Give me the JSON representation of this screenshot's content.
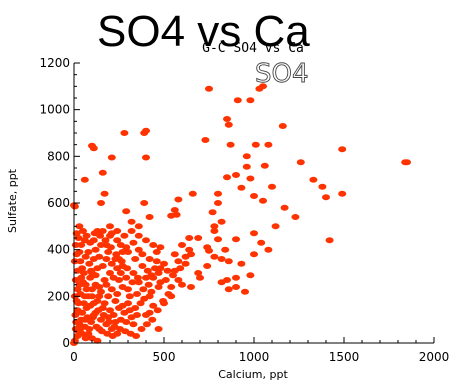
{
  "chart_data": {
    "type": "scatter",
    "title": "SO4 vs Ca",
    "subtitle": "G-C SO4 vs Ca",
    "annotation": "SO4",
    "xlabel": "Calcium, ppt",
    "ylabel": "Sulfate, ppt",
    "xlim": [
      0,
      2000
    ],
    "ylim": [
      0,
      1200
    ],
    "x_ticks": [
      0,
      500,
      1000,
      1500,
      2000
    ],
    "y_ticks": [
      0,
      200,
      400,
      600,
      800,
      1000,
      1200
    ],
    "grid": false,
    "color": "#ff3300",
    "points": [
      [
        0,
        590
      ],
      [
        5,
        585
      ],
      [
        100,
        845
      ],
      [
        110,
        835
      ],
      [
        280,
        900
      ],
      [
        210,
        795
      ],
      [
        400,
        795
      ],
      [
        390,
        900
      ],
      [
        400,
        910
      ],
      [
        750,
        1090
      ],
      [
        910,
        1040
      ],
      [
        980,
        1040
      ],
      [
        1030,
        1090
      ],
      [
        1050,
        1100
      ],
      [
        850,
        960
      ],
      [
        860,
        935
      ],
      [
        1160,
        930
      ],
      [
        730,
        870
      ],
      [
        870,
        850
      ],
      [
        960,
        800
      ],
      [
        960,
        755
      ],
      [
        1010,
        850
      ],
      [
        1080,
        850
      ],
      [
        1260,
        775
      ],
      [
        1490,
        830
      ],
      [
        1840,
        775
      ],
      [
        1850,
        775
      ],
      [
        1060,
        760
      ],
      [
        980,
        705
      ],
      [
        900,
        720
      ],
      [
        850,
        710
      ],
      [
        930,
        665
      ],
      [
        800,
        640
      ],
      [
        800,
        600
      ],
      [
        660,
        640
      ],
      [
        580,
        615
      ],
      [
        1000,
        630
      ],
      [
        1050,
        610
      ],
      [
        1100,
        670
      ],
      [
        1170,
        580
      ],
      [
        1330,
        700
      ],
      [
        1380,
        670
      ],
      [
        1400,
        625
      ],
      [
        1490,
        640
      ],
      [
        1230,
        540
      ],
      [
        1420,
        440
      ],
      [
        1120,
        500
      ],
      [
        1000,
        470
      ],
      [
        770,
        560
      ],
      [
        780,
        500
      ],
      [
        780,
        480
      ],
      [
        820,
        520
      ],
      [
        800,
        445
      ],
      [
        900,
        445
      ],
      [
        840,
        400
      ],
      [
        740,
        410
      ],
      [
        690,
        450
      ],
      [
        640,
        450
      ],
      [
        600,
        420
      ],
      [
        640,
        400
      ],
      [
        650,
        380
      ],
      [
        750,
        395
      ],
      [
        780,
        370
      ],
      [
        820,
        360
      ],
      [
        860,
        350
      ],
      [
        930,
        340
      ],
      [
        980,
        290
      ],
      [
        900,
        280
      ],
      [
        850,
        270
      ],
      [
        820,
        260
      ],
      [
        700,
        280
      ],
      [
        650,
        240
      ],
      [
        600,
        250
      ],
      [
        480,
        260
      ],
      [
        480,
        320
      ],
      [
        430,
        290
      ],
      [
        560,
        570
      ],
      [
        570,
        550
      ],
      [
        540,
        545
      ],
      [
        420,
        540
      ],
      [
        390,
        600
      ],
      [
        290,
        565
      ],
      [
        170,
        640
      ],
      [
        150,
        600
      ],
      [
        200,
        500
      ],
      [
        130,
        480
      ],
      [
        320,
        520
      ],
      [
        360,
        500
      ],
      [
        500,
        170
      ],
      [
        470,
        60
      ],
      [
        420,
        130
      ],
      [
        580,
        350
      ],
      [
        560,
        310
      ],
      [
        900,
        240
      ],
      [
        950,
        220
      ],
      [
        1000,
        380
      ],
      [
        1040,
        430
      ],
      [
        1080,
        400
      ],
      [
        620,
        370
      ],
      [
        690,
        300
      ],
      [
        740,
        330
      ],
      [
        860,
        230
      ],
      [
        540,
        200
      ],
      [
        160,
        730
      ],
      [
        60,
        700
      ],
      [
        30,
        500
      ],
      [
        10,
        420
      ],
      [
        5,
        350
      ],
      [
        45,
        320
      ],
      [
        90,
        280
      ],
      [
        120,
        250
      ],
      [
        150,
        220
      ],
      [
        190,
        200
      ],
      [
        230,
        180
      ],
      [
        270,
        160
      ],
      [
        310,
        140
      ],
      [
        350,
        120
      ],
      [
        300,
        230
      ],
      [
        250,
        270
      ],
      [
        200,
        300
      ],
      [
        160,
        330
      ],
      [
        110,
        360
      ],
      [
        80,
        390
      ],
      [
        40,
        420
      ],
      [
        30,
        250
      ],
      [
        60,
        200
      ],
      [
        90,
        160
      ],
      [
        120,
        130
      ],
      [
        150,
        100
      ],
      [
        180,
        80
      ],
      [
        210,
        60
      ],
      [
        240,
        40
      ],
      [
        20,
        140
      ],
      [
        40,
        100
      ],
      [
        60,
        70
      ],
      [
        80,
        40
      ],
      [
        100,
        20
      ],
      [
        130,
        10
      ],
      [
        10,
        60
      ],
      [
        20,
        30
      ],
      [
        5,
        10
      ],
      [
        0,
        0
      ],
      [
        15,
        180
      ],
      [
        50,
        260
      ],
      [
        70,
        230
      ],
      [
        100,
        200
      ],
      [
        130,
        180
      ],
      [
        160,
        150
      ],
      [
        200,
        140
      ],
      [
        220,
        120
      ],
      [
        260,
        100
      ],
      [
        290,
        90
      ],
      [
        330,
        80
      ],
      [
        360,
        260
      ],
      [
        400,
        280
      ],
      [
        330,
        300
      ],
      [
        270,
        330
      ],
      [
        230,
        360
      ],
      [
        190,
        390
      ],
      [
        150,
        420
      ],
      [
        110,
        440
      ],
      [
        70,
        460
      ],
      [
        50,
        480
      ],
      [
        260,
        420
      ],
      [
        300,
        390
      ],
      [
        340,
        360
      ],
      [
        380,
        330
      ],
      [
        420,
        360
      ],
      [
        460,
        390
      ],
      [
        440,
        420
      ],
      [
        400,
        440
      ],
      [
        360,
        460
      ],
      [
        320,
        480
      ],
      [
        280,
        460
      ],
      [
        240,
        440
      ],
      [
        200,
        460
      ],
      [
        160,
        480
      ],
      [
        120,
        400
      ],
      [
        85,
        340
      ],
      [
        55,
        300
      ],
      [
        35,
        210
      ],
      [
        25,
        170
      ],
      [
        45,
        130
      ],
      [
        75,
        110
      ],
      [
        95,
        90
      ],
      [
        125,
        70
      ],
      [
        155,
        50
      ],
      [
        185,
        40
      ],
      [
        215,
        30
      ],
      [
        30,
        80
      ],
      [
        70,
        150
      ],
      [
        110,
        170
      ],
      [
        140,
        240
      ],
      [
        170,
        270
      ],
      [
        210,
        230
      ],
      [
        240,
        210
      ],
      [
        270,
        240
      ],
      [
        310,
        200
      ],
      [
        350,
        210
      ],
      [
        390,
        190
      ],
      [
        430,
        220
      ],
      [
        470,
        240
      ],
      [
        510,
        270
      ],
      [
        550,
        290
      ],
      [
        590,
        320
      ],
      [
        620,
        340
      ],
      [
        500,
        340
      ],
      [
        460,
        350
      ],
      [
        440,
        160
      ],
      [
        400,
        120
      ],
      [
        370,
        170
      ],
      [
        340,
        150
      ],
      [
        320,
        110
      ],
      [
        280,
        130
      ],
      [
        250,
        150
      ],
      [
        230,
        90
      ],
      [
        190,
        110
      ],
      [
        170,
        170
      ],
      [
        140,
        200
      ],
      [
        100,
        230
      ],
      [
        65,
        250
      ],
      [
        40,
        280
      ],
      [
        20,
        310
      ],
      [
        15,
        380
      ],
      [
        35,
        350
      ],
      [
        65,
        370
      ],
      [
        95,
        310
      ],
      [
        120,
        290
      ],
      [
        180,
        250
      ],
      [
        220,
        280
      ],
      [
        260,
        300
      ],
      [
        290,
        280
      ],
      [
        240,
        320
      ],
      [
        210,
        340
      ],
      [
        180,
        360
      ],
      [
        140,
        370
      ],
      [
        100,
        300
      ],
      [
        80,
        200
      ],
      [
        55,
        170
      ],
      [
        20,
        230
      ],
      [
        10,
        270
      ],
      [
        5,
        200
      ],
      [
        8,
        120
      ],
      [
        12,
        90
      ],
      [
        25,
        50
      ],
      [
        45,
        40
      ],
      [
        65,
        20
      ],
      [
        85,
        60
      ],
      [
        105,
        110
      ],
      [
        135,
        140
      ],
      [
        165,
        120
      ],
      [
        195,
        90
      ],
      [
        225,
        70
      ],
      [
        255,
        60
      ],
      [
        285,
        50
      ],
      [
        315,
        40
      ],
      [
        345,
        30
      ],
      [
        375,
        60
      ],
      [
        405,
        80
      ],
      [
        435,
        100
      ],
      [
        465,
        140
      ],
      [
        495,
        180
      ],
      [
        525,
        210
      ],
      [
        385,
        230
      ],
      [
        415,
        250
      ],
      [
        355,
        280
      ],
      [
        325,
        260
      ],
      [
        295,
        320
      ],
      [
        265,
        350
      ],
      [
        235,
        380
      ],
      [
        205,
        410
      ],
      [
        175,
        440
      ],
      [
        145,
        460
      ],
      [
        115,
        470
      ],
      [
        90,
        430
      ],
      [
        60,
        440
      ],
      [
        30,
        390
      ],
      [
        25,
        450
      ],
      [
        15,
        470
      ],
      [
        180,
        420
      ],
      [
        210,
        470
      ],
      [
        240,
        480
      ],
      [
        130,
        320
      ],
      [
        110,
        120
      ],
      [
        140,
        60
      ],
      [
        60,
        100
      ],
      [
        35,
        60
      ],
      [
        300,
        170
      ],
      [
        420,
        200
      ],
      [
        450,
        320
      ],
      [
        540,
        240
      ],
      [
        580,
        270
      ],
      [
        520,
        310
      ],
      [
        560,
        380
      ],
      [
        480,
        410
      ],
      [
        360,
        400
      ],
      [
        330,
        430
      ],
      [
        290,
        410
      ],
      [
        270,
        390
      ],
      [
        250,
        360
      ],
      [
        380,
        380
      ],
      [
        410,
        310
      ],
      [
        440,
        280
      ],
      [
        470,
        300
      ]
    ]
  }
}
